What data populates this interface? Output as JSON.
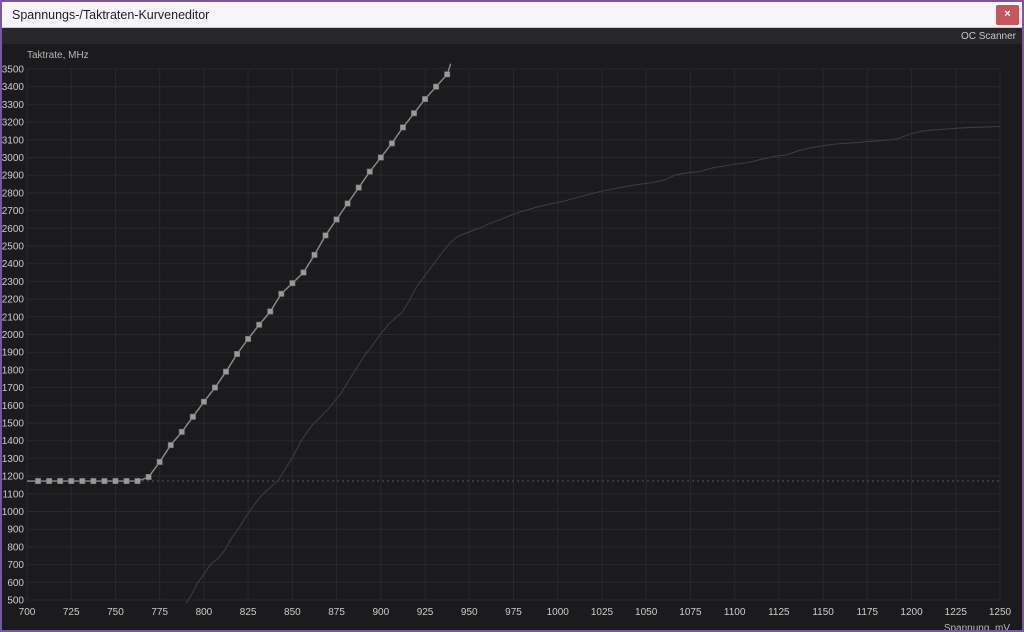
{
  "window": {
    "title": "Spannungs-/Taktraten-Kurveneditor",
    "close_label": "×"
  },
  "toolbar": {
    "oc_scanner_label": "OC Scanner"
  },
  "colors": {
    "window_border": "#7c54a4",
    "titlebar_bg": "#f8f5fa",
    "titlebar_text": "#1d1d1f",
    "close_button_bg": "#c4565c",
    "toolbar_bg": "#27272b",
    "chart_bg": "#1b1b1d",
    "gridline": "#29292c",
    "tick_text": "#cccccc",
    "axis_title_text": "#b8b8b8",
    "editable_curve": "#8f8f8f",
    "marker_fill": "#9a9a9a",
    "stock_curve": "#3c3c40",
    "reference_line": "#58585c"
  },
  "chart_data": {
    "type": "line",
    "title": "",
    "xlabel": "Spannung, mV",
    "ylabel": "Taktrate, MHz",
    "xlim": [
      700,
      1250
    ],
    "ylim": [
      500,
      3500
    ],
    "grid": true,
    "legend_position": "none",
    "x_ticks": [
      700,
      725,
      750,
      775,
      800,
      825,
      850,
      875,
      900,
      925,
      950,
      975,
      1000,
      1025,
      1050,
      1075,
      1100,
      1125,
      1150,
      1175,
      1200,
      1225,
      1250
    ],
    "y_ticks": [
      500,
      600,
      700,
      800,
      900,
      1000,
      1100,
      1200,
      1300,
      1400,
      1500,
      1600,
      1700,
      1800,
      1900,
      2000,
      2100,
      2200,
      2300,
      2400,
      2500,
      2600,
      2700,
      2800,
      2900,
      3000,
      3100,
      3200,
      3300,
      3400,
      3500
    ],
    "reference_line": {
      "y": 1172,
      "style": "dotted"
    },
    "series": [
      {
        "name": "editable-vf-curve",
        "marker": "square",
        "points": [
          [
            700,
            1172,
            0
          ],
          [
            706.25,
            1172
          ],
          [
            712.5,
            1172
          ],
          [
            718.75,
            1172
          ],
          [
            725,
            1172
          ],
          [
            731.25,
            1172
          ],
          [
            737.5,
            1172
          ],
          [
            743.75,
            1172
          ],
          [
            750,
            1172
          ],
          [
            756.25,
            1172
          ],
          [
            762.5,
            1172
          ],
          [
            768.75,
            1195
          ],
          [
            775,
            1280
          ],
          [
            781.25,
            1375
          ],
          [
            787.5,
            1450
          ],
          [
            793.75,
            1535
          ],
          [
            800,
            1620
          ],
          [
            806.25,
            1700
          ],
          [
            812.5,
            1790
          ],
          [
            818.75,
            1890
          ],
          [
            825,
            1975
          ],
          [
            831.25,
            2055
          ],
          [
            837.5,
            2130
          ],
          [
            843.75,
            2230
          ],
          [
            850,
            2290
          ],
          [
            856.25,
            2350
          ],
          [
            862.5,
            2450
          ],
          [
            868.75,
            2560
          ],
          [
            875,
            2650
          ],
          [
            881.25,
            2740
          ],
          [
            887.5,
            2830
          ],
          [
            893.75,
            2920
          ],
          [
            900,
            3000
          ],
          [
            906.25,
            3080
          ],
          [
            912.5,
            3170
          ],
          [
            918.75,
            3250
          ],
          [
            925,
            3330
          ],
          [
            931.25,
            3400
          ],
          [
            937.5,
            3470
          ],
          [
            939.5,
            3530,
            0
          ]
        ]
      },
      {
        "name": "default-vf-curve",
        "marker": "none",
        "points": [
          [
            790,
            480
          ],
          [
            793,
            530
          ],
          [
            796,
            590
          ],
          [
            800,
            645
          ],
          [
            804,
            705
          ],
          [
            808,
            735
          ],
          [
            812,
            785
          ],
          [
            816,
            855
          ],
          [
            820,
            910
          ],
          [
            825,
            990
          ],
          [
            829,
            1045
          ],
          [
            833,
            1095
          ],
          [
            838,
            1140
          ],
          [
            842,
            1175
          ],
          [
            846,
            1240
          ],
          [
            850,
            1305
          ],
          [
            855,
            1400
          ],
          [
            861,
            1485
          ],
          [
            866,
            1535
          ],
          [
            870,
            1575
          ],
          [
            874,
            1625
          ],
          [
            877,
            1660
          ],
          [
            881,
            1725
          ],
          [
            885,
            1790
          ],
          [
            890,
            1870
          ],
          [
            895,
            1935
          ],
          [
            900,
            2005
          ],
          [
            905,
            2065
          ],
          [
            909,
            2100
          ],
          [
            912,
            2125
          ],
          [
            916,
            2190
          ],
          [
            920,
            2265
          ],
          [
            925,
            2335
          ],
          [
            930,
            2400
          ],
          [
            934,
            2455
          ],
          [
            938,
            2505
          ],
          [
            941,
            2535
          ],
          [
            944,
            2557
          ],
          [
            949,
            2575
          ],
          [
            955,
            2598
          ],
          [
            961,
            2625
          ],
          [
            968,
            2650
          ],
          [
            975,
            2680
          ],
          [
            982,
            2702
          ],
          [
            989,
            2722
          ],
          [
            996,
            2738
          ],
          [
            1003,
            2752
          ],
          [
            1010,
            2772
          ],
          [
            1017,
            2790
          ],
          [
            1024,
            2808
          ],
          [
            1031,
            2822
          ],
          [
            1038,
            2835
          ],
          [
            1045,
            2847
          ],
          [
            1052,
            2856
          ],
          [
            1060,
            2872
          ],
          [
            1066,
            2900
          ],
          [
            1072,
            2912
          ],
          [
            1080,
            2920
          ],
          [
            1087,
            2940
          ],
          [
            1094,
            2952
          ],
          [
            1101,
            2963
          ],
          [
            1108,
            2972
          ],
          [
            1115,
            2990
          ],
          [
            1122,
            3005
          ],
          [
            1129,
            3014
          ],
          [
            1136,
            3038
          ],
          [
            1143,
            3055
          ],
          [
            1150,
            3066
          ],
          [
            1157,
            3076
          ],
          [
            1164,
            3081
          ],
          [
            1171,
            3086
          ],
          [
            1178,
            3092
          ],
          [
            1185,
            3097
          ],
          [
            1192,
            3105
          ],
          [
            1199,
            3132
          ],
          [
            1206,
            3150
          ],
          [
            1213,
            3156
          ],
          [
            1220,
            3161
          ],
          [
            1227,
            3166
          ],
          [
            1234,
            3170
          ],
          [
            1241,
            3172
          ],
          [
            1250,
            3175
          ]
        ]
      }
    ]
  }
}
